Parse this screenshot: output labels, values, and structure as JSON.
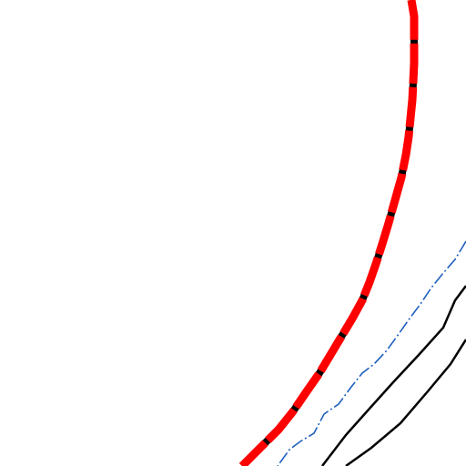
{
  "map": {
    "background_color": "#ffffff",
    "features": [
      {
        "kind": "major-road",
        "color": "#ff0000",
        "casing_color": "#000000",
        "style": "red road with black dashed casing"
      },
      {
        "kind": "boundary-line",
        "color": "#1f5fbf",
        "style": "thin blue dash-dot"
      },
      {
        "kind": "road",
        "color": "#000000",
        "style": "thin solid black"
      },
      {
        "kind": "road",
        "color": "#000000",
        "style": "thin solid black"
      }
    ]
  }
}
